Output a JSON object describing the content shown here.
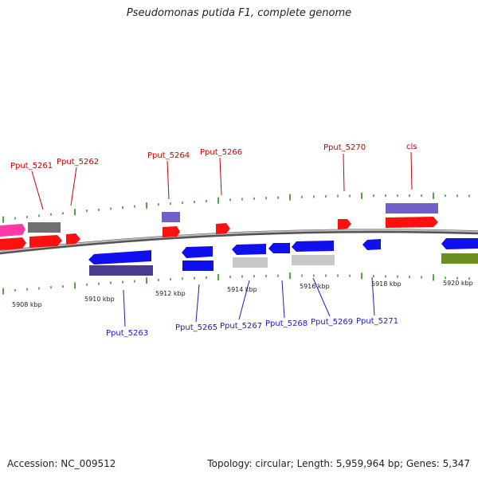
{
  "title": "Pseudomonas putida F1, complete genome",
  "footer": {
    "accession": "Accession: NC_009512",
    "info": "Topology: circular; Length: 5,959,964 bp; Genes: 5,347"
  },
  "axis": {
    "unit": "kbp",
    "tick_labels": [
      "5908 kbp",
      "5910 kbp",
      "5912 kbp",
      "5914 kbp",
      "5916 kbp",
      "5918 kbp",
      "5920 kbp"
    ]
  },
  "top_genes": [
    "Pput_5261",
    "Pput_5262",
    "Pput_5264",
    "Pput_5266",
    "Pput_5270",
    "cls"
  ],
  "bottom_genes": [
    "Pput_5263",
    "Pput_5265",
    "Pput_5267",
    "Pput_5268",
    "Pput_5269",
    "Pput_5271"
  ],
  "colors": {
    "forward_cds": "#ff1010",
    "reverse_cds": "#1010ee",
    "forward_gene": "#7060c8",
    "reverse_gene": "#4a3a90",
    "gray_feature": "#707070",
    "light_gray_feature": "#c8c8c8",
    "pink_feature": "#ff3aa8",
    "olive_feature": "#6b8e23",
    "tick": "#2a8a1a",
    "label_top": "#cc0000",
    "label_bottom": "#1a1acc"
  }
}
